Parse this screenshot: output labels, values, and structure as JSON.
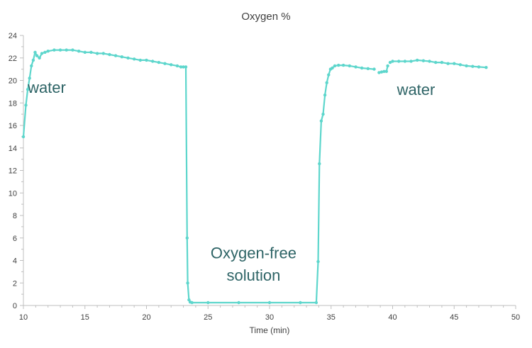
{
  "chart_data": {
    "type": "scatter",
    "title": "Oxygen %",
    "xlabel": "Time (min)",
    "ylabel": "",
    "xlim": [
      10,
      50
    ],
    "ylim": [
      0,
      24
    ],
    "xticks": [
      10,
      15,
      20,
      25,
      30,
      35,
      40,
      45,
      50
    ],
    "yticks": [
      0,
      2,
      4,
      6,
      8,
      10,
      12,
      14,
      16,
      18,
      20,
      22,
      24
    ],
    "grid": false,
    "line_color": "#5dd6cc",
    "annotation_color": "#2e6466",
    "series": [
      {
        "x": [
          10.0,
          10.2,
          10.35,
          10.5,
          10.65,
          10.8,
          10.95,
          11.1,
          11.3,
          11.5,
          11.75,
          12.0,
          12.5,
          13.0,
          13.5,
          14.0,
          14.5,
          15.0,
          15.5,
          16.0,
          16.5,
          17.0,
          17.5,
          18.0,
          18.5,
          19.0,
          19.5,
          20.0,
          20.5,
          21.0,
          21.5,
          22.0,
          22.5,
          22.8,
          23.0,
          23.2,
          23.3,
          23.35,
          23.45,
          23.55,
          23.7,
          25.0,
          27.5,
          30.0,
          32.5,
          33.8,
          33.95,
          34.05,
          34.2,
          34.35,
          34.5,
          34.65,
          34.8,
          34.95,
          35.1,
          35.3,
          35.6,
          36.0,
          36.5,
          37.0,
          37.5,
          38.0,
          38.5,
          38.9,
          39.1,
          39.3,
          39.5,
          39.6,
          39.8,
          40.0,
          40.5,
          41.0,
          41.5,
          42.0,
          42.5,
          43.0,
          43.5,
          44.0,
          44.5,
          45.0,
          45.5,
          46.0,
          46.5,
          47.0,
          47.6
        ],
        "y": [
          15.0,
          17.8,
          19.2,
          20.2,
          21.3,
          21.8,
          22.5,
          22.2,
          22.0,
          22.4,
          22.5,
          22.6,
          22.7,
          22.7,
          22.7,
          22.7,
          22.6,
          22.5,
          22.5,
          22.4,
          22.4,
          22.3,
          22.2,
          22.1,
          22.0,
          21.9,
          21.8,
          21.8,
          21.7,
          21.6,
          21.5,
          21.4,
          21.3,
          21.2,
          21.2,
          21.2,
          6.0,
          2.0,
          0.5,
          0.3,
          0.25,
          0.25,
          0.25,
          0.25,
          0.25,
          0.25,
          3.9,
          12.6,
          16.4,
          17.0,
          18.7,
          19.8,
          20.5,
          21.0,
          21.1,
          21.3,
          21.35,
          21.35,
          21.3,
          21.2,
          21.1,
          21.05,
          21.0,
          20.7,
          20.75,
          20.8,
          20.8,
          21.3,
          21.6,
          21.7,
          21.7,
          21.7,
          21.7,
          21.8,
          21.75,
          21.7,
          21.6,
          21.6,
          21.5,
          21.5,
          21.4,
          21.3,
          21.25,
          21.2,
          21.15
        ]
      }
    ],
    "gaps_after_index": [
      62,
      67
    ],
    "annotations": [
      {
        "text": "water",
        "x": 11.9,
        "y": 18.9
      },
      {
        "text": "Oxygen-free",
        "x": 28.7,
        "y": 4.2
      },
      {
        "text": "solution",
        "x": 28.7,
        "y": 2.2
      },
      {
        "text": "water",
        "x": 41.9,
        "y": 18.7
      }
    ]
  }
}
